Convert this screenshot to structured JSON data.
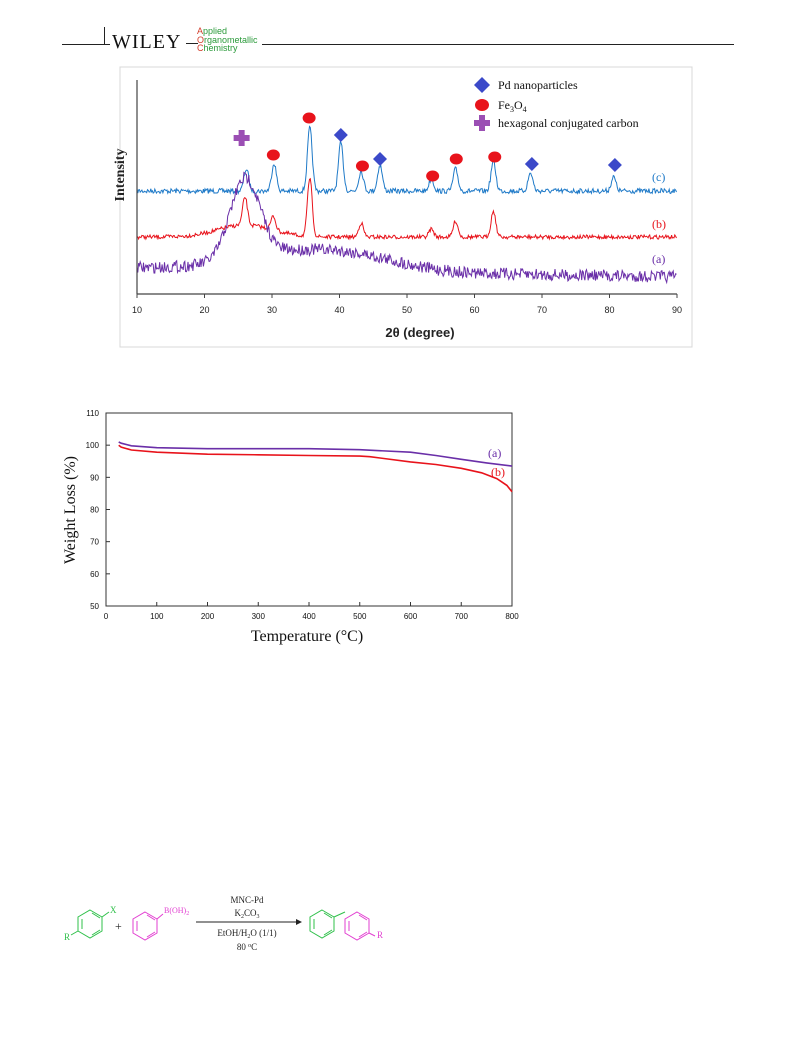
{
  "header": {
    "publisher": "WILEY",
    "journal_lines": [
      {
        "cap": "A",
        "rest": "pplied"
      },
      {
        "cap": "O",
        "rest": "rganometallic"
      },
      {
        "cap": "C",
        "rest": "hemistry"
      }
    ]
  },
  "colors": {
    "curve_a": "#6a2fa8",
    "curve_b": "#e8131b",
    "curve_c": "#1f7ac8",
    "marker_pd": "#3b49c9",
    "marker_fe3o4": "#e8131b",
    "marker_carbon": "#9b4fb4"
  },
  "chart_data": [
    {
      "type": "line",
      "xlabel": "2θ (degree)",
      "ylabel": "Intensity",
      "xlim": [
        10,
        90
      ],
      "xticks": [
        "10",
        "20",
        "30",
        "40",
        "50",
        "60",
        "70",
        "80",
        "90"
      ],
      "legend": [
        {
          "marker": "diamond",
          "label": "Pd nanoparticles"
        },
        {
          "marker": "circle",
          "label": "Fe3O4"
        },
        {
          "marker": "plus",
          "label": "hexagonal conjugated carbon"
        }
      ],
      "legend_placement": "top-right",
      "series": [
        {
          "name": "(c)",
          "peaks_2theta": [
            26.2,
            30.3,
            35.6,
            40.2,
            43.2,
            46.0,
            53.6,
            57.2,
            62.8,
            68.3,
            80.6
          ]
        },
        {
          "name": "(b)",
          "peaks_2theta": [
            26.0,
            30.2,
            35.6,
            43.2,
            53.6,
            57.2,
            62.8
          ]
        },
        {
          "name": "(a)",
          "peaks_2theta": [
            26.0
          ],
          "broad_hump_2theta": [
            20,
            50
          ]
        }
      ],
      "marker_annotations": [
        {
          "marker": "plus",
          "x": 25.5
        },
        {
          "marker": "circle",
          "x": 30.2
        },
        {
          "marker": "circle",
          "x": 35.5
        },
        {
          "marker": "diamond",
          "x": 40.2
        },
        {
          "marker": "circle",
          "x": 43.4
        },
        {
          "marker": "diamond",
          "x": 46.0
        },
        {
          "marker": "circle",
          "x": 53.8
        },
        {
          "marker": "circle",
          "x": 57.3
        },
        {
          "marker": "circle",
          "x": 63.0
        },
        {
          "marker": "diamond",
          "x": 68.5
        },
        {
          "marker": "diamond",
          "x": 80.8
        }
      ]
    },
    {
      "type": "line",
      "xlabel": "Temperature (°C)",
      "ylabel": "Weight Loss (%)",
      "xlim": [
        0,
        800
      ],
      "ylim": [
        50,
        110
      ],
      "xticks": [
        "0",
        "100",
        "200",
        "300",
        "400",
        "500",
        "600",
        "700",
        "800"
      ],
      "yticks": [
        "50",
        "60",
        "70",
        "80",
        "90",
        "100",
        "110"
      ],
      "series": [
        {
          "name": "(a)",
          "x": [
            25,
            30,
            50,
            100,
            200,
            300,
            400,
            500,
            600,
            650,
            700,
            750,
            800
          ],
          "y": [
            101,
            100.6,
            99.8,
            99.2,
            98.9,
            98.9,
            98.9,
            98.6,
            97.8,
            96.8,
            95.6,
            94.5,
            93.5
          ]
        },
        {
          "name": "(b)",
          "x": [
            25,
            30,
            50,
            100,
            200,
            300,
            400,
            500,
            520,
            600,
            650,
            700,
            740,
            770,
            790,
            800
          ],
          "y": [
            100,
            99.4,
            98.5,
            97.8,
            97.2,
            97.0,
            96.8,
            96.6,
            96.4,
            94.8,
            94.0,
            92.8,
            91.4,
            89.6,
            87.5,
            85.5
          ]
        }
      ]
    }
  ],
  "scheme": {
    "reactant1_substituents": [
      "R",
      "X"
    ],
    "reactant2_group": "B(OH)2",
    "plus": "+",
    "conditions_above": [
      "MNC-Pd",
      "K2CO3"
    ],
    "conditions_below": [
      "EtOH/H2O (1/1)",
      "80 °C"
    ],
    "product_substituent": "R"
  }
}
